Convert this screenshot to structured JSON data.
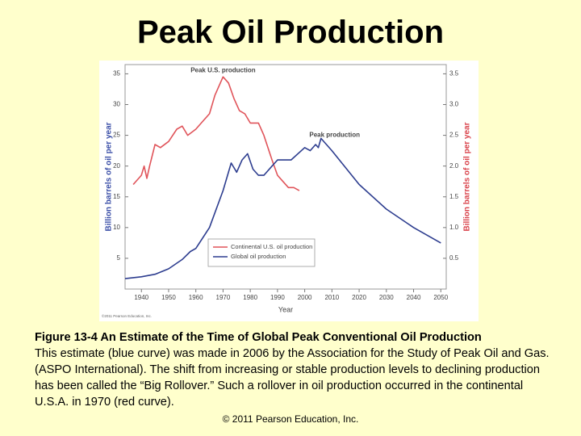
{
  "title": "Peak Oil Production",
  "chart_data": {
    "type": "line",
    "xlabel": "Year",
    "ylabel": "Billion barrels of oil per year",
    "y2label": "Billion barrels of oil per year",
    "ylabel_color": "#3b4fa8",
    "y2label_color": "#d9434b",
    "xlim": [
      1934,
      2052
    ],
    "xticks": [
      1940,
      1950,
      1960,
      1970,
      1980,
      1990,
      2000,
      2010,
      2020,
      2030,
      2040,
      2050
    ],
    "ylim": [
      0,
      36.5
    ],
    "yticks": [
      5,
      10,
      15,
      20,
      25,
      30,
      35
    ],
    "y2lim": [
      0,
      3.65
    ],
    "y2ticks": [
      0.5,
      {
        "value": 1.0,
        "label": "1.0"
      },
      1.5,
      {
        "value": 2.0,
        "label": "2.0"
      },
      2.5,
      {
        "value": 3.0,
        "label": "3.0"
      },
      3.5
    ],
    "legend": "lower-center",
    "series": [
      {
        "name": "Continental U.S. oil production",
        "color": "#e0545a",
        "axis": "y2",
        "x": [
          1937,
          1940,
          1941,
          1942,
          1943,
          1945,
          1947,
          1950,
          1953,
          1955,
          1957,
          1960,
          1963,
          1965,
          1967,
          1970,
          1972,
          1974,
          1976,
          1978,
          1980,
          1983,
          1985,
          1988,
          1990,
          1992,
          1994,
          1996,
          1998
        ],
        "values": [
          1.7,
          1.85,
          2.0,
          1.8,
          2.0,
          2.35,
          2.3,
          2.4,
          2.6,
          2.65,
          2.5,
          2.6,
          2.75,
          2.85,
          3.15,
          3.45,
          3.35,
          3.1,
          2.9,
          2.85,
          2.7,
          2.7,
          2.5,
          2.1,
          1.85,
          1.75,
          1.65,
          1.65,
          1.6
        ]
      },
      {
        "name": "Global oil production",
        "color": "#2d3d8f",
        "x": [
          1934,
          1940,
          1945,
          1950,
          1955,
          1958,
          1960,
          1965,
          1970,
          1973,
          1975,
          1977,
          1979,
          1981,
          1983,
          1985,
          1988,
          1990,
          1995,
          2000,
          2002,
          2004,
          2005,
          2006,
          2010,
          2020,
          2030,
          2040,
          2050
        ],
        "values": [
          1.7,
          2.0,
          2.4,
          3.3,
          4.8,
          6.1,
          6.6,
          10,
          16,
          20.5,
          19,
          21,
          22,
          19.5,
          18.5,
          18.5,
          20,
          21,
          21,
          23,
          22.5,
          23.5,
          23,
          24.5,
          22.5,
          17,
          13,
          10,
          7.5
        ]
      }
    ],
    "annotations": [
      {
        "text": "Peak U.S. production",
        "x": 1970,
        "y": 35.5
      },
      {
        "text": "Peak production",
        "x": 2011,
        "y": 25
      }
    ],
    "credit": "©2011 Pearson Education, Inc."
  },
  "caption": {
    "heading": "Figure 13-4  An Estimate of the Time of Global Peak Conventional Oil Production",
    "text": "This estimate (blue curve) was made in 2006 by the Association for the Study of Peak Oil and Gas. (ASPO International). The shift from increasing or stable production levels to declining production has been called the “Big Rollover.” Such a rollover in oil production occurred in the continental U.S.A. in 1970 (red curve)."
  },
  "footer": "© 2011 Pearson Education, Inc."
}
